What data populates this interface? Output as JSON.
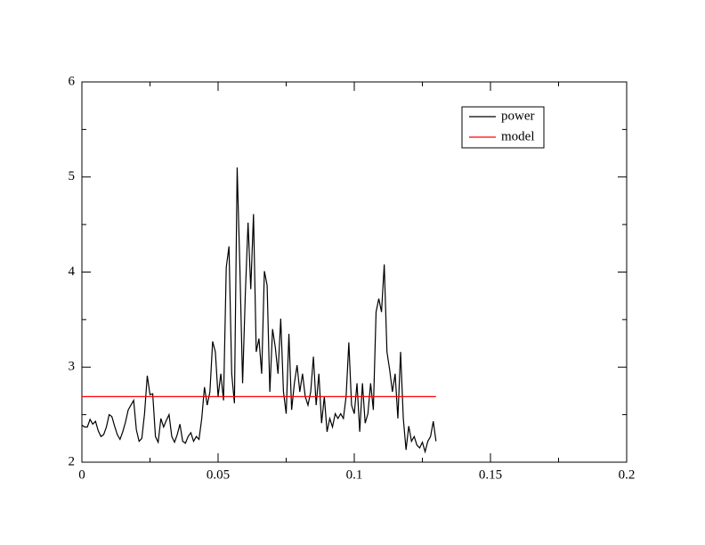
{
  "chart_data": {
    "type": "line",
    "xlim": [
      0,
      0.2
    ],
    "xticks": [
      0,
      0.05,
      0.1,
      0.15,
      0.2
    ],
    "xminorticks": [
      0.025,
      0.075,
      0.125,
      0.175
    ],
    "ylim": [
      2,
      6
    ],
    "yticks": [
      2,
      3,
      4,
      5,
      6
    ],
    "yminorticks": [
      2.5,
      3.5,
      4.5,
      5.5
    ],
    "legend": "top-right",
    "series": [
      {
        "name": "power",
        "color": "#000000",
        "x": [
          0,
          0.001,
          0.002,
          0.003,
          0.004,
          0.005,
          0.006,
          0.007,
          0.008,
          0.009,
          0.01,
          0.011,
          0.012,
          0.013,
          0.014,
          0.015,
          0.016,
          0.017,
          0.018,
          0.019,
          0.02,
          0.021,
          0.022,
          0.023,
          0.024,
          0.025,
          0.026,
          0.027,
          0.028,
          0.029,
          0.03,
          0.031,
          0.032,
          0.033,
          0.034,
          0.035,
          0.036,
          0.037,
          0.038,
          0.039,
          0.04,
          0.041,
          0.042,
          0.043,
          0.044,
          0.045,
          0.046,
          0.047,
          0.048,
          0.049,
          0.05,
          0.051,
          0.052,
          0.053,
          0.054,
          0.055,
          0.056,
          0.057,
          0.058,
          0.059,
          0.06,
          0.061,
          0.062,
          0.063,
          0.064,
          0.065,
          0.066,
          0.067,
          0.068,
          0.069,
          0.07,
          0.071,
          0.072,
          0.073,
          0.074,
          0.075,
          0.076,
          0.077,
          0.078,
          0.079,
          0.08,
          0.081,
          0.082,
          0.083,
          0.084,
          0.085,
          0.086,
          0.087,
          0.088,
          0.089,
          0.09,
          0.091,
          0.092,
          0.093,
          0.094,
          0.095,
          0.096,
          0.097,
          0.098,
          0.099,
          0.1,
          0.101,
          0.102,
          0.103,
          0.104,
          0.105,
          0.106,
          0.107,
          0.108,
          0.109,
          0.11,
          0.111,
          0.112,
          0.113,
          0.114,
          0.115,
          0.116,
          0.117,
          0.118,
          0.119,
          0.12,
          0.121,
          0.122,
          0.123,
          0.124,
          0.125,
          0.126,
          0.127,
          0.128,
          0.129,
          0.13
        ],
        "values": [
          2.39,
          2.37,
          2.37,
          2.45,
          2.4,
          2.43,
          2.33,
          2.27,
          2.29,
          2.37,
          2.5,
          2.48,
          2.38,
          2.29,
          2.24,
          2.32,
          2.42,
          2.55,
          2.6,
          2.65,
          2.34,
          2.22,
          2.25,
          2.51,
          2.91,
          2.71,
          2.72,
          2.27,
          2.21,
          2.46,
          2.37,
          2.44,
          2.5,
          2.27,
          2.21,
          2.29,
          2.4,
          2.22,
          2.2,
          2.27,
          2.31,
          2.22,
          2.27,
          2.24,
          2.46,
          2.79,
          2.6,
          2.74,
          3.27,
          3.16,
          2.69,
          2.93,
          2.65,
          4.05,
          4.27,
          2.93,
          2.62,
          5.1,
          4.05,
          2.83,
          3.77,
          4.52,
          3.82,
          4.61,
          3.16,
          3.3,
          2.93,
          4.01,
          3.86,
          2.74,
          3.4,
          3.21,
          2.93,
          3.51,
          2.74,
          2.51,
          3.35,
          2.55,
          2.83,
          3.02,
          2.74,
          2.93,
          2.69,
          2.6,
          2.74,
          3.11,
          2.6,
          2.93,
          2.41,
          2.69,
          2.32,
          2.46,
          2.37,
          2.51,
          2.46,
          2.51,
          2.46,
          2.69,
          3.26,
          2.6,
          2.51,
          2.83,
          2.32,
          2.83,
          2.41,
          2.51,
          2.83,
          2.55,
          3.58,
          3.72,
          3.58,
          4.08,
          3.16,
          2.97,
          2.74,
          2.93,
          2.46,
          3.16,
          2.46,
          2.13,
          2.38,
          2.22,
          2.27,
          2.18,
          2.15,
          2.21,
          2.11,
          2.22,
          2.27,
          2.43,
          2.22
        ]
      },
      {
        "name": "model",
        "color": "#ff0000",
        "x": [
          0,
          0.13
        ],
        "values": [
          2.69,
          2.69
        ]
      }
    ]
  }
}
